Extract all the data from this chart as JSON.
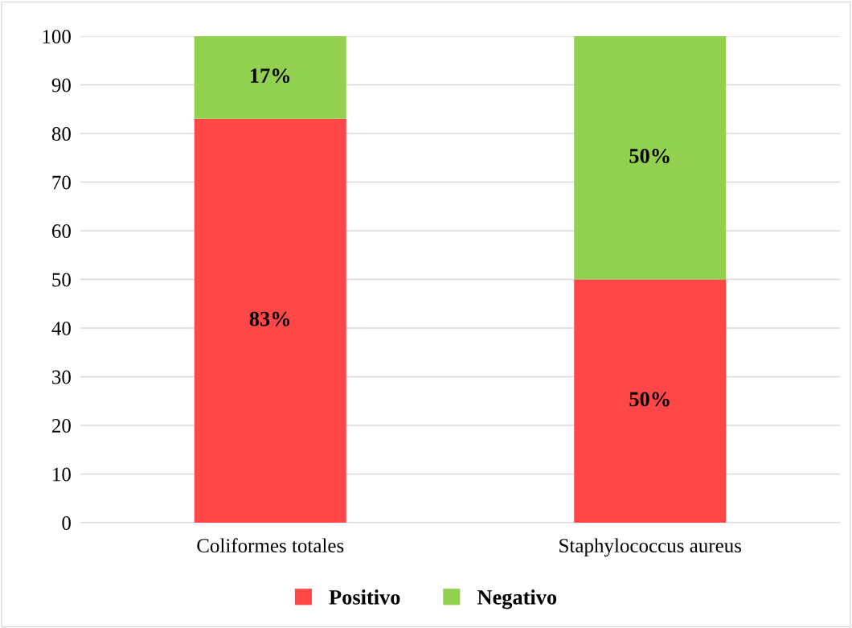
{
  "chart_data": {
    "type": "bar",
    "stacked": true,
    "categories": [
      "Coliformes totales",
      "Staphylococcus aureus"
    ],
    "series": [
      {
        "name": "Positivo",
        "color": "#ff4747",
        "values": [
          83,
          50
        ],
        "value_labels": [
          "83%",
          "50%"
        ]
      },
      {
        "name": "Negativo",
        "color": "#92d050",
        "values": [
          17,
          50
        ],
        "value_labels": [
          "17%",
          "50%"
        ]
      }
    ],
    "ylim": [
      0,
      100
    ],
    "yticks": [
      0,
      10,
      20,
      30,
      40,
      50,
      60,
      70,
      80,
      90,
      100
    ],
    "grid": "y",
    "legend": "bottom"
  }
}
